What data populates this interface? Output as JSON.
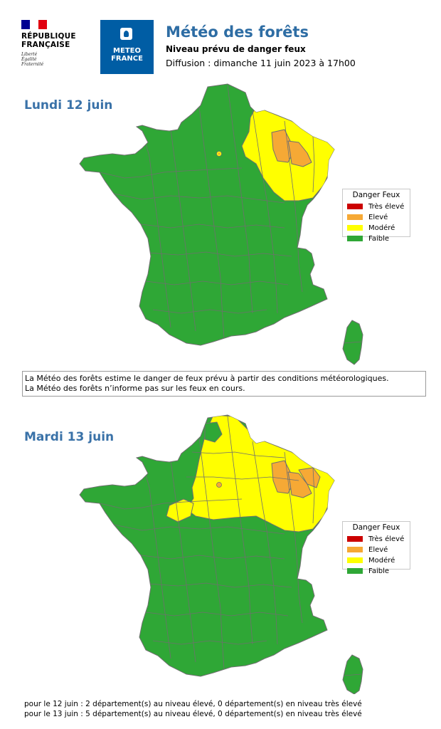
{
  "header": {
    "republique": [
      "RÉPUBLIQUE",
      "FRANÇAISE"
    ],
    "motto": [
      "Liberté",
      "Égalité",
      "Fraternité"
    ],
    "meteofrance": [
      "METEO",
      "FRANCE"
    ],
    "title": "Météo des forêts",
    "subtitle": "Niveau prévu de danger feux",
    "diffusion": "Diffusion : dimanche 11 juin 2023 à 17h00"
  },
  "colors": {
    "tres_eleve": "#cc0000",
    "eleve": "#f6a935",
    "modere": "#ffff00",
    "faible": "#2fa736",
    "title_blue": "#2e6da4",
    "mf_blue": "#005da4"
  },
  "legend": {
    "title": "Danger Feux",
    "items": [
      "Très élevé",
      "Elevé",
      "Modéré",
      "Faible"
    ]
  },
  "maps": [
    {
      "day": "Lundi 12 juin"
    },
    {
      "day": "Mardi 13 juin"
    }
  ],
  "info": [
    "La Météo des forêts estime le danger de feux prévu à partir des conditions météorologiques.",
    "La Météo des forêts n’informe pas sur les feux en cours."
  ],
  "footer": [
    "pour le 12 juin : 2 département(s) au niveau élevé, 0 département(s) en niveau très élevé",
    "pour le 13 juin : 5 département(s) au niveau élevé, 0 département(s) en niveau très élevé"
  ]
}
